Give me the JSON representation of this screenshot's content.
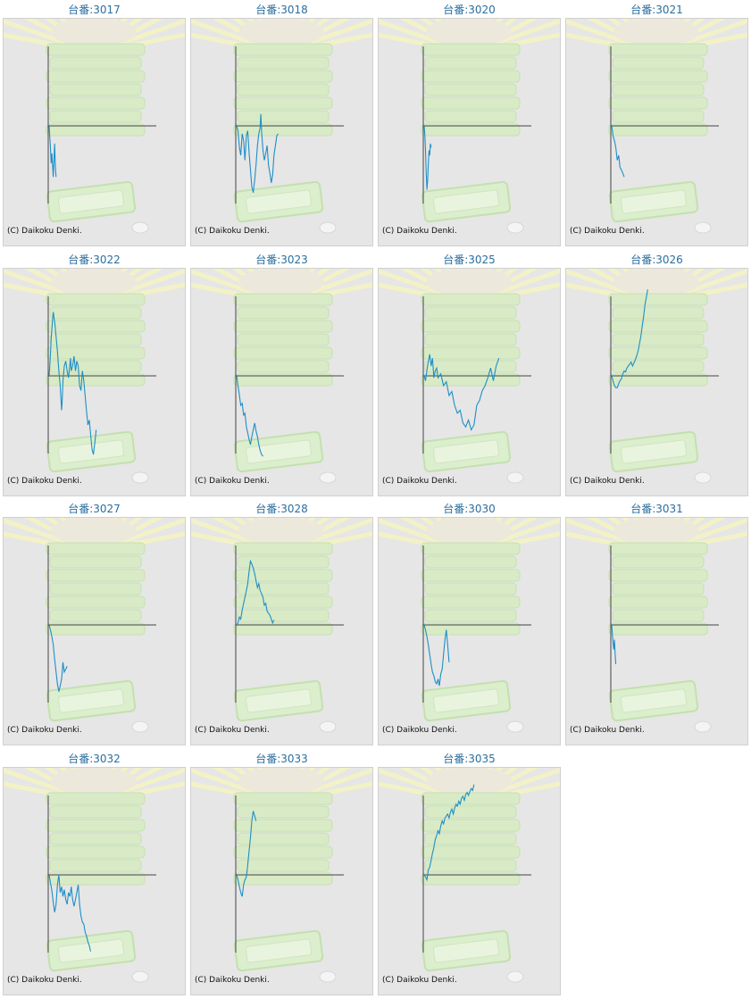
{
  "copyright": "(C) Daikoku Denki.",
  "chart_data": [
    {
      "type": "line",
      "title": "台番:3017",
      "points": [
        [
          0,
          0
        ],
        [
          0.3,
          -8
        ],
        [
          1,
          -22
        ],
        [
          1.5,
          -38
        ],
        [
          2,
          -28
        ],
        [
          3,
          -52
        ],
        [
          3.5,
          -35
        ],
        [
          4,
          -18
        ],
        [
          4.5,
          -42
        ],
        [
          5,
          -52
        ]
      ]
    },
    {
      "type": "line",
      "title": "台番:3018",
      "points": [
        [
          0,
          0
        ],
        [
          1,
          -5
        ],
        [
          2,
          -22
        ],
        [
          3,
          -30
        ],
        [
          4,
          -8
        ],
        [
          5,
          -15
        ],
        [
          6,
          -35
        ],
        [
          7,
          -10
        ],
        [
          8,
          -5
        ],
        [
          9,
          -28
        ],
        [
          10,
          -45
        ],
        [
          11,
          -62
        ],
        [
          12,
          -68
        ],
        [
          13,
          -55
        ],
        [
          14,
          -40
        ],
        [
          15,
          -20
        ],
        [
          16,
          -8
        ],
        [
          17,
          -2
        ],
        [
          17.5,
          12
        ],
        [
          18,
          -5
        ],
        [
          19,
          -25
        ],
        [
          20,
          -35
        ],
        [
          21,
          -28
        ],
        [
          22,
          -20
        ],
        [
          23,
          -40
        ],
        [
          24,
          -48
        ],
        [
          25,
          -58
        ],
        [
          26,
          -50
        ],
        [
          27,
          -30
        ],
        [
          28,
          -20
        ],
        [
          29,
          -10
        ],
        [
          30,
          -8
        ]
      ]
    },
    {
      "type": "line",
      "title": "台番:3020",
      "points": [
        [
          0,
          0
        ],
        [
          0.5,
          -10
        ],
        [
          1,
          -25
        ],
        [
          1.5,
          -48
        ],
        [
          2,
          -65
        ],
        [
          2.5,
          -55
        ],
        [
          3,
          -40
        ],
        [
          3.5,
          -25
        ],
        [
          4,
          -30
        ],
        [
          4.5,
          -18
        ],
        [
          5,
          -22
        ]
      ]
    },
    {
      "type": "line",
      "title": "台番:3021",
      "points": [
        [
          0,
          0
        ],
        [
          1,
          -10
        ],
        [
          2,
          -15
        ],
        [
          3,
          -22
        ],
        [
          4,
          -35
        ],
        [
          5,
          -30
        ],
        [
          6,
          -42
        ],
        [
          7,
          -45
        ],
        [
          8,
          -48
        ],
        [
          9,
          -52
        ]
      ]
    },
    {
      "type": "line",
      "title": "台番:3022",
      "points": [
        [
          0,
          0
        ],
        [
          1,
          22
        ],
        [
          1.5,
          38
        ],
        [
          2,
          48
        ],
        [
          2.5,
          58
        ],
        [
          3,
          65
        ],
        [
          4,
          55
        ],
        [
          5,
          40
        ],
        [
          6,
          25
        ],
        [
          7,
          5
        ],
        [
          8,
          -10
        ],
        [
          9,
          -35
        ],
        [
          9.5,
          -25
        ],
        [
          10,
          -5
        ],
        [
          11,
          10
        ],
        [
          12,
          15
        ],
        [
          13,
          5
        ],
        [
          14,
          -2
        ],
        [
          15,
          12
        ],
        [
          15.5,
          18
        ],
        [
          16,
          5
        ],
        [
          17,
          10
        ],
        [
          18,
          20
        ],
        [
          19,
          5
        ],
        [
          20,
          15
        ],
        [
          21,
          10
        ],
        [
          22,
          -10
        ],
        [
          23,
          -15
        ],
        [
          24,
          5
        ],
        [
          25,
          -5
        ],
        [
          26,
          -20
        ],
        [
          27,
          -35
        ],
        [
          28,
          -50
        ],
        [
          29,
          -45
        ],
        [
          30,
          -60
        ],
        [
          31,
          -75
        ],
        [
          32,
          -80
        ],
        [
          33,
          -68
        ],
        [
          34,
          -55
        ]
      ]
    },
    {
      "type": "line",
      "title": "台番:3023",
      "points": [
        [
          0,
          0
        ],
        [
          1,
          -10
        ],
        [
          2,
          -20
        ],
        [
          3,
          -30
        ],
        [
          4,
          -28
        ],
        [
          5,
          -40
        ],
        [
          6,
          -38
        ],
        [
          7,
          -52
        ],
        [
          8,
          -58
        ],
        [
          9,
          -65
        ],
        [
          10,
          -70
        ],
        [
          11,
          -62
        ],
        [
          12,
          -55
        ],
        [
          13,
          -48
        ],
        [
          14,
          -56
        ],
        [
          15,
          -62
        ],
        [
          16,
          -70
        ],
        [
          17,
          -76
        ],
        [
          18,
          -80
        ],
        [
          19,
          -82
        ]
      ]
    },
    {
      "type": "line",
      "title": "台番:3025",
      "points": [
        [
          0,
          0
        ],
        [
          1,
          -5
        ],
        [
          2,
          6
        ],
        [
          3,
          14
        ],
        [
          4,
          22
        ],
        [
          5,
          10
        ],
        [
          6,
          18
        ],
        [
          7,
          -2
        ],
        [
          8,
          5
        ],
        [
          9,
          8
        ],
        [
          10,
          -2
        ],
        [
          12,
          2
        ],
        [
          14,
          -10
        ],
        [
          16,
          -6
        ],
        [
          18,
          -20
        ],
        [
          20,
          -16
        ],
        [
          22,
          -30
        ],
        [
          24,
          -38
        ],
        [
          26,
          -35
        ],
        [
          28,
          -48
        ],
        [
          30,
          -52
        ],
        [
          32,
          -45
        ],
        [
          34,
          -55
        ],
        [
          36,
          -50
        ],
        [
          38,
          -30
        ],
        [
          40,
          -25
        ],
        [
          42,
          -15
        ],
        [
          44,
          -10
        ],
        [
          46,
          -2
        ],
        [
          48,
          8
        ],
        [
          50,
          -5
        ],
        [
          52,
          10
        ],
        [
          54,
          18
        ]
      ]
    },
    {
      "type": "line",
      "title": "台番:3026",
      "points": [
        [
          0,
          0
        ],
        [
          1,
          -5
        ],
        [
          2,
          -10
        ],
        [
          3,
          -12
        ],
        [
          4,
          -12
        ],
        [
          5,
          -8
        ],
        [
          6,
          -5
        ],
        [
          7,
          -3
        ],
        [
          8,
          2
        ],
        [
          9,
          5
        ],
        [
          10,
          4
        ],
        [
          11,
          8
        ],
        [
          12,
          10
        ],
        [
          13,
          12
        ],
        [
          14,
          14
        ],
        [
          15,
          10
        ],
        [
          16,
          13
        ],
        [
          17,
          16
        ],
        [
          18,
          20
        ],
        [
          19,
          25
        ],
        [
          20,
          32
        ],
        [
          21,
          40
        ],
        [
          22,
          50
        ],
        [
          23,
          60
        ],
        [
          24,
          72
        ],
        [
          25,
          80
        ],
        [
          26,
          88
        ]
      ]
    },
    {
      "type": "line",
      "title": "台番:3027",
      "points": [
        [
          0,
          0
        ],
        [
          1,
          -5
        ],
        [
          2,
          -12
        ],
        [
          3,
          -20
        ],
        [
          4,
          -35
        ],
        [
          5,
          -48
        ],
        [
          6,
          -60
        ],
        [
          7,
          -68
        ],
        [
          8,
          -62
        ],
        [
          9,
          -55
        ],
        [
          10,
          -38
        ],
        [
          11,
          -48
        ],
        [
          12,
          -45
        ],
        [
          13,
          -42
        ]
      ]
    },
    {
      "type": "line",
      "title": "台番:3028",
      "points": [
        [
          0,
          0
        ],
        [
          1,
          2
        ],
        [
          2,
          8
        ],
        [
          3,
          6
        ],
        [
          4,
          15
        ],
        [
          5,
          22
        ],
        [
          6,
          28
        ],
        [
          7,
          35
        ],
        [
          8,
          42
        ],
        [
          9,
          55
        ],
        [
          10,
          65
        ],
        [
          11,
          62
        ],
        [
          12,
          58
        ],
        [
          13,
          52
        ],
        [
          14,
          45
        ],
        [
          15,
          38
        ],
        [
          16,
          42
        ],
        [
          17,
          35
        ],
        [
          18,
          32
        ],
        [
          19,
          28
        ],
        [
          20,
          20
        ],
        [
          21,
          22
        ],
        [
          22,
          14
        ],
        [
          23,
          12
        ],
        [
          24,
          10
        ],
        [
          25,
          6
        ],
        [
          26,
          2
        ],
        [
          27,
          5
        ]
      ]
    },
    {
      "type": "line",
      "title": "台番:3030",
      "points": [
        [
          0,
          0
        ],
        [
          1,
          -5
        ],
        [
          2,
          -12
        ],
        [
          3,
          -20
        ],
        [
          4,
          -30
        ],
        [
          5,
          -40
        ],
        [
          6,
          -48
        ],
        [
          7,
          -52
        ],
        [
          8,
          -58
        ],
        [
          9,
          -60
        ],
        [
          10,
          -55
        ],
        [
          11,
          -62
        ],
        [
          12,
          -50
        ],
        [
          13,
          -45
        ],
        [
          14,
          -30
        ],
        [
          15,
          -15
        ],
        [
          16,
          -5
        ],
        [
          17,
          -20
        ],
        [
          18,
          -38
        ]
      ]
    },
    {
      "type": "line",
      "title": "台番:3031",
      "points": [
        [
          0,
          0
        ],
        [
          0.5,
          -10
        ],
        [
          1,
          -18
        ],
        [
          1.5,
          -25
        ],
        [
          2,
          -15
        ],
        [
          2.5,
          -30
        ],
        [
          3,
          -40
        ]
      ]
    },
    {
      "type": "line",
      "title": "台番:3032",
      "points": [
        [
          0,
          0
        ],
        [
          1,
          -8
        ],
        [
          2,
          -16
        ],
        [
          3,
          -28
        ],
        [
          4,
          -38
        ],
        [
          5,
          -30
        ],
        [
          6,
          -10
        ],
        [
          7,
          0
        ],
        [
          8,
          -18
        ],
        [
          9,
          -12
        ],
        [
          10,
          -22
        ],
        [
          11,
          -15
        ],
        [
          12,
          -25
        ],
        [
          13,
          -30
        ],
        [
          14,
          -18
        ],
        [
          15,
          -22
        ],
        [
          16,
          -12
        ],
        [
          17,
          -25
        ],
        [
          18,
          -32
        ],
        [
          19,
          -25
        ],
        [
          20,
          -18
        ],
        [
          21,
          -10
        ],
        [
          22,
          -30
        ],
        [
          23,
          -42
        ],
        [
          24,
          -48
        ],
        [
          25,
          -50
        ],
        [
          26,
          -58
        ],
        [
          27,
          -62
        ],
        [
          28,
          -68
        ],
        [
          29,
          -72
        ],
        [
          30,
          -78
        ]
      ]
    },
    {
      "type": "line",
      "title": "台番:3033",
      "points": [
        [
          0,
          0
        ],
        [
          1,
          -5
        ],
        [
          2,
          -12
        ],
        [
          3,
          -18
        ],
        [
          4,
          -22
        ],
        [
          5,
          -10
        ],
        [
          6,
          -5
        ],
        [
          7,
          -2
        ],
        [
          8,
          10
        ],
        [
          9,
          25
        ],
        [
          10,
          38
        ],
        [
          11,
          55
        ],
        [
          12,
          65
        ],
        [
          13,
          60
        ],
        [
          14,
          55
        ]
      ]
    },
    {
      "type": "line",
      "title": "台番:3035",
      "points": [
        [
          0,
          0
        ],
        [
          1,
          -2
        ],
        [
          2,
          -5
        ],
        [
          3,
          5
        ],
        [
          4,
          8
        ],
        [
          5,
          15
        ],
        [
          6,
          22
        ],
        [
          7,
          28
        ],
        [
          8,
          36
        ],
        [
          9,
          40
        ],
        [
          10,
          45
        ],
        [
          11,
          42
        ],
        [
          12,
          50
        ],
        [
          13,
          55
        ],
        [
          14,
          52
        ],
        [
          15,
          58
        ],
        [
          16,
          60
        ],
        [
          17,
          62
        ],
        [
          18,
          58
        ],
        [
          19,
          64
        ],
        [
          20,
          67
        ],
        [
          21,
          62
        ],
        [
          22,
          68
        ],
        [
          23,
          72
        ],
        [
          24,
          70
        ],
        [
          25,
          75
        ],
        [
          26,
          72
        ],
        [
          27,
          78
        ],
        [
          28,
          80
        ],
        [
          29,
          76
        ],
        [
          30,
          82
        ],
        [
          31,
          84
        ],
        [
          32,
          81
        ],
        [
          33,
          85
        ],
        [
          34,
          88
        ],
        [
          35,
          86
        ],
        [
          36,
          92
        ]
      ]
    }
  ]
}
